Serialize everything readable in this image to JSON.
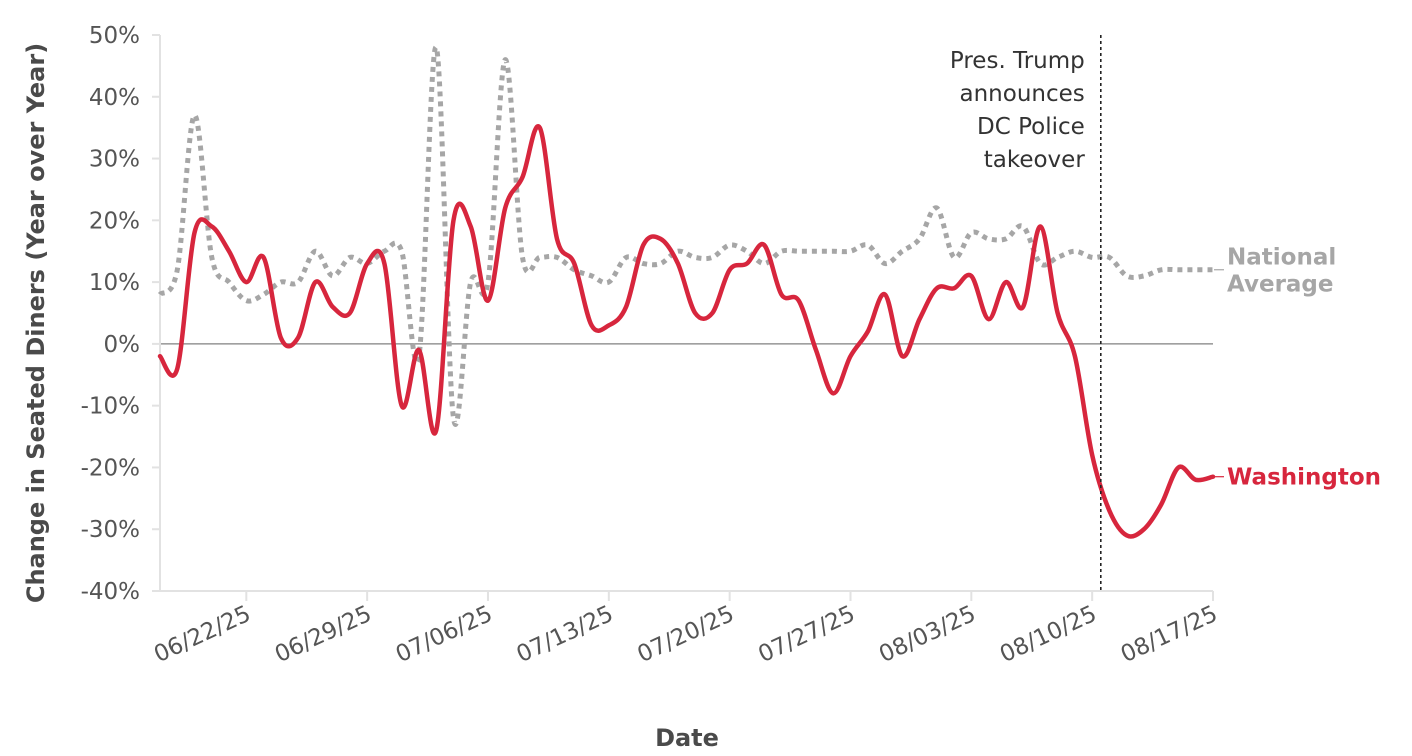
{
  "chart_data": {
    "type": "line",
    "title": "",
    "xlabel": "Date",
    "ylabel": "Change in Seated Diners (Year over Year)",
    "ylim": [
      -40,
      50
    ],
    "yticks": [
      -40,
      -30,
      -20,
      -10,
      0,
      10,
      20,
      30,
      40,
      50
    ],
    "ytick_labels": [
      "-40%",
      "-30%",
      "-20%",
      "-10%",
      "0%",
      "10%",
      "20%",
      "30%",
      "40%",
      "50%"
    ],
    "xlim": [
      0,
      61
    ],
    "xticks": [
      5,
      12,
      19,
      26,
      33,
      40,
      47,
      54,
      61
    ],
    "xtick_labels": [
      "06/22/25",
      "06/29/25",
      "07/06/25",
      "07/13/25",
      "07/20/25",
      "07/27/25",
      "08/03/25",
      "08/10/25",
      "08/17/25"
    ],
    "grid": false,
    "series": [
      {
        "name": "Washington",
        "color": "#d7263d",
        "style": "solid",
        "x": [
          0,
          1,
          2,
          3,
          4,
          5,
          6,
          7,
          8,
          9,
          10,
          11,
          12,
          13,
          14,
          15,
          16,
          17,
          18,
          19,
          20,
          21,
          22,
          23,
          24,
          25,
          26,
          27,
          28,
          29,
          30,
          31,
          32,
          33,
          34,
          35,
          36,
          37,
          38,
          39,
          40,
          41,
          42,
          43,
          44,
          45,
          46,
          47,
          48,
          49,
          50,
          51,
          52,
          53,
          54,
          55,
          56,
          57,
          58,
          59,
          60,
          61
        ],
        "values": [
          -2,
          -4,
          18,
          19,
          15,
          10,
          14,
          1,
          1,
          10,
          6,
          5,
          13,
          13,
          -10,
          -1,
          -14,
          20,
          19,
          7,
          22,
          27,
          35,
          17,
          13,
          3,
          3,
          6,
          16,
          17,
          13,
          5,
          5,
          12,
          13,
          16,
          8,
          7,
          -1,
          -8,
          -2,
          2,
          8,
          -2,
          4,
          9,
          9,
          11,
          4,
          10,
          6,
          19,
          5,
          -2,
          -18,
          -27,
          -31,
          -30,
          -26,
          -20,
          -22,
          -21.5
        ]
      },
      {
        "name": "National Average",
        "color": "#a6a6a6",
        "style": "dotted",
        "x": [
          0,
          1,
          2,
          3,
          4,
          5,
          6,
          7,
          8,
          9,
          10,
          11,
          12,
          13,
          14,
          15,
          16,
          17,
          18,
          19,
          20,
          21,
          22,
          23,
          24,
          25,
          26,
          27,
          28,
          29,
          30,
          31,
          32,
          33,
          34,
          35,
          36,
          37,
          38,
          39,
          40,
          41,
          42,
          43,
          44,
          45,
          46,
          47,
          48,
          49,
          50,
          51,
          52,
          53,
          54,
          55,
          56,
          57,
          58,
          59,
          60,
          61
        ],
        "values": [
          8,
          12,
          37,
          14,
          10,
          7,
          8,
          10,
          10,
          15,
          11,
          14,
          13,
          15,
          15,
          -2,
          48,
          -12,
          10,
          10,
          46,
          14,
          14,
          14,
          12,
          11,
          10,
          14,
          13,
          13,
          15,
          14,
          14,
          16,
          15,
          13,
          15,
          15,
          15,
          15,
          15,
          16,
          13,
          15,
          17,
          22,
          14,
          18,
          17,
          17,
          19,
          13,
          14,
          15,
          14,
          14,
          11,
          11,
          12,
          12,
          12,
          12
        ]
      }
    ],
    "annotations": [
      {
        "type": "vline",
        "x": 54.5,
        "lines": [
          "Pres. Trump",
          "announces",
          "DC Police",
          "takeover"
        ]
      }
    ],
    "legend": {
      "placement": "right",
      "entries": [
        {
          "series": "National Average",
          "lines": [
            "National",
            "Average"
          ],
          "color": "#a6a6a6"
        },
        {
          "series": "Washington",
          "lines": [
            "Washington"
          ],
          "color": "#d7263d"
        }
      ]
    }
  }
}
